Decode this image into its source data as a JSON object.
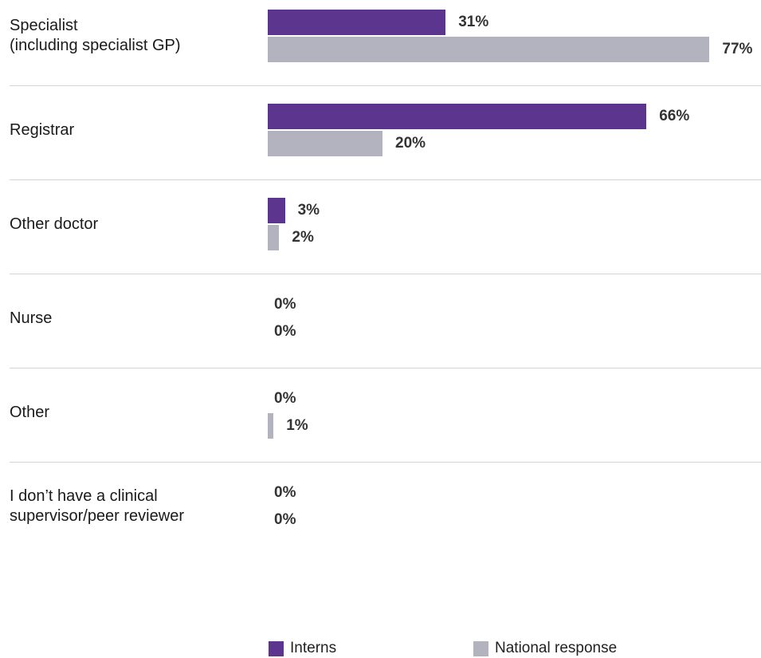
{
  "chart_data": {
    "type": "bar",
    "orientation": "horizontal",
    "categories": [
      "Specialist\n(including specialist GP)",
      "Registrar",
      "Other doctor",
      "Nurse",
      "Other",
      "I don’t have a clinical\nsupervisor/peer reviewer"
    ],
    "series": [
      {
        "name": "Interns",
        "values": [
          31,
          66,
          3,
          0,
          0,
          0
        ],
        "color": "#5b358e"
      },
      {
        "name": "National response",
        "values": [
          77,
          20,
          2,
          0,
          1,
          0
        ],
        "color": "#b3b3bf"
      }
    ],
    "value_suffix": "%",
    "xlim": [
      0,
      100
    ],
    "grid": false,
    "legend_position": "bottom"
  }
}
